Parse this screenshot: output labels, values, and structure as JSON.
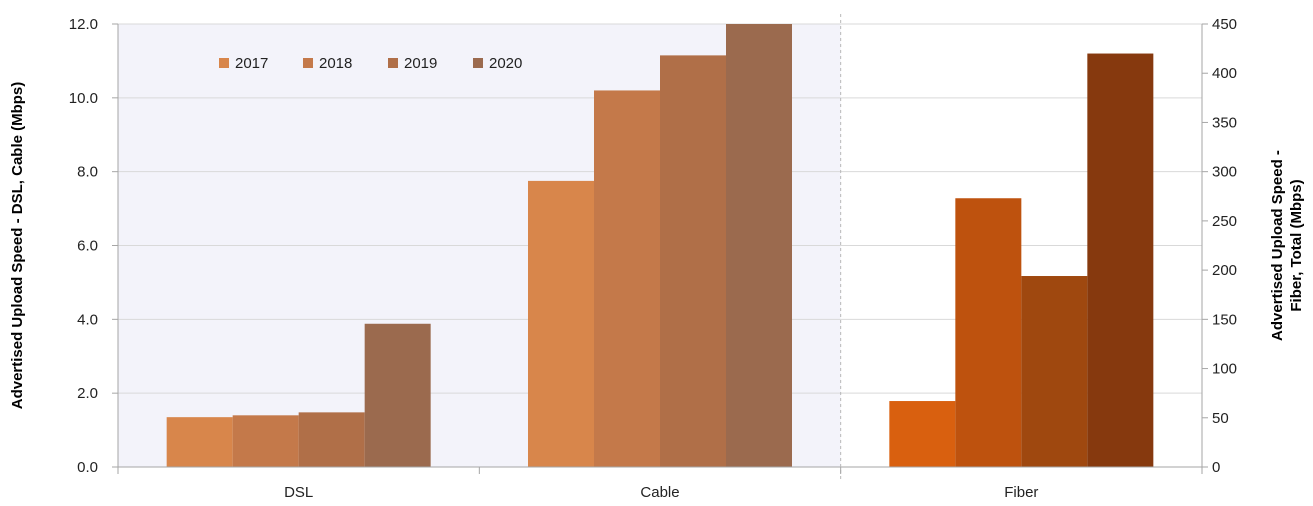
{
  "chart_data": {
    "type": "bar",
    "categories": [
      "DSL",
      "Cable",
      "Fiber"
    ],
    "series": [
      {
        "name": "2017",
        "values": [
          1.35,
          7.75,
          67
        ]
      },
      {
        "name": "2018",
        "values": [
          1.4,
          10.2,
          273
        ]
      },
      {
        "name": "2019",
        "values": [
          1.48,
          11.15,
          194
        ]
      },
      {
        "name": "2020",
        "values": [
          3.88,
          12.0,
          420
        ]
      }
    ],
    "series_axis": [
      "left",
      "left",
      "right"
    ],
    "title": "",
    "ylabel": "Advertised Upload Speed - DSL, Cable (Mbps)",
    "y2label_lines": [
      "Advertised Upload Speed -",
      "Fiber, Total (Mbps)"
    ],
    "ylim": [
      0,
      12
    ],
    "y2lim": [
      0,
      450
    ],
    "yticks": [
      "0.0",
      "2.0",
      "4.0",
      "6.0",
      "8.0",
      "10.0",
      "12.0"
    ],
    "y2ticks": [
      "0",
      "50",
      "100",
      "150",
      "200",
      "250",
      "300",
      "350",
      "400",
      "450"
    ],
    "legend_position": "top-left",
    "grid": true,
    "colors": {
      "left_bars": [
        "#d8864b",
        "#c4794a",
        "#b06f48",
        "#9b6a4e"
      ],
      "right_bars": [
        "#d9600f",
        "#be520e",
        "#9f480f",
        "#86390e"
      ],
      "plot_shade": "#f3f3fa",
      "grid": "#d9d9d9",
      "axis": "#a6a6a6",
      "divider": "#b8b8b8"
    }
  }
}
